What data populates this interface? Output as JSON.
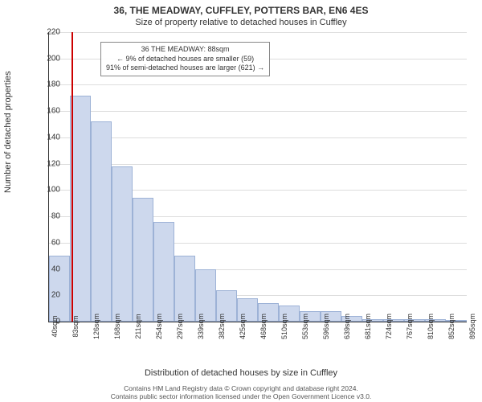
{
  "title_main": "36, THE MEADWAY, CUFFLEY, POTTERS BAR, EN6 4ES",
  "title_sub": "Size of property relative to detached houses in Cuffley",
  "ylabel": "Number of detached properties",
  "xlabel": "Distribution of detached houses by size in Cuffley",
  "footnote_line1": "Contains HM Land Registry data © Crown copyright and database right 2024.",
  "footnote_line2": "Contains public sector information licensed under the Open Government Licence v3.0.",
  "chart": {
    "type": "histogram",
    "ylim": [
      0,
      220
    ],
    "ytick_step": 20,
    "background_color": "#ffffff",
    "grid_color": "#dddddd",
    "bar_fill": "#cdd8ed",
    "bar_border": "#9db2d6",
    "marker_color": "#cc0000",
    "marker_x_value": 88,
    "x_start": 40,
    "x_step": 42.65,
    "x_labels": [
      "40sqm",
      "83sqm",
      "126sqm",
      "168sqm",
      "211sqm",
      "254sqm",
      "297sqm",
      "339sqm",
      "382sqm",
      "425sqm",
      "468sqm",
      "510sqm",
      "553sqm",
      "596sqm",
      "639sqm",
      "681sqm",
      "724sqm",
      "767sqm",
      "810sqm",
      "852sqm",
      "895sqm"
    ],
    "bar_values": [
      50,
      172,
      152,
      118,
      94,
      76,
      50,
      40,
      24,
      18,
      14,
      12,
      8,
      8,
      4,
      2,
      2,
      2,
      2,
      1
    ],
    "label_fontsize": 11,
    "tick_fontsize": 10
  },
  "info_box": {
    "line1": "36 THE MEADWAY: 88sqm",
    "line2": "← 9% of detached houses are smaller (59)",
    "line3": "91% of semi-detached houses are larger (621) →"
  }
}
